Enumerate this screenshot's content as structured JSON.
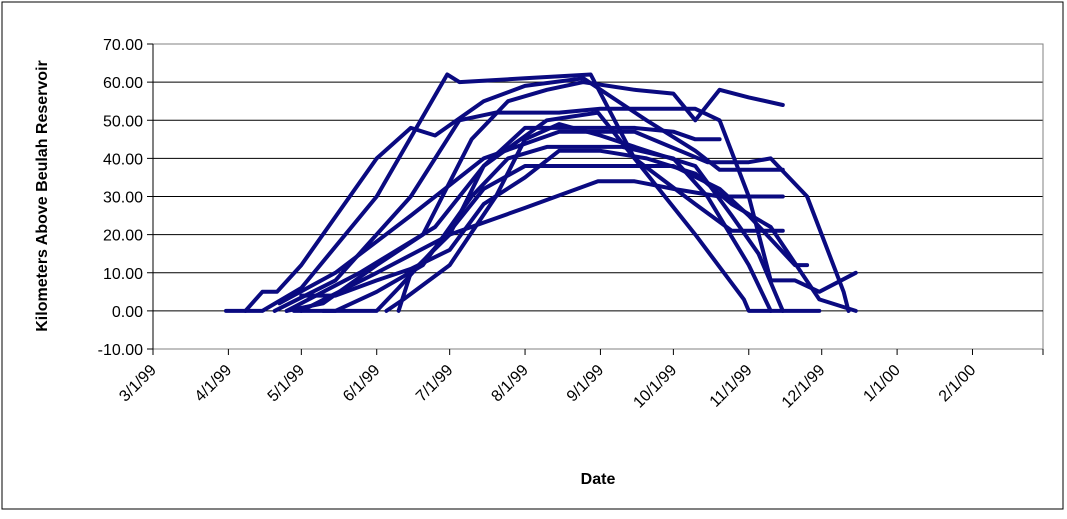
{
  "colors": {
    "series": "#0a0a80",
    "axis": "#000000",
    "gridline": "#000000",
    "border": "#000000",
    "background": "#ffffff"
  },
  "chart_data": {
    "type": "line",
    "title": "",
    "xlabel": "Date",
    "ylabel": "Kilometers Above Beulah Reservoir",
    "xlim": [
      "1999-03-01",
      "2000-03-01"
    ],
    "ylim": [
      -10,
      70
    ],
    "grid": "horizontal",
    "legend": "none",
    "x_tick_labels": [
      "3/1/99",
      "4/1/99",
      "5/1/99",
      "6/1/99",
      "7/1/99",
      "8/1/99",
      "9/1/99",
      "10/1/99",
      "11/1/99",
      "12/1/99",
      "1/1/00",
      "2/1/00"
    ],
    "y_tick_labels": [
      "-10.00",
      "0.00",
      "10.00",
      "20.00",
      "30.00",
      "40.00",
      "50.00",
      "60.00",
      "70.00"
    ],
    "series": [
      {
        "points": [
          [
            "1999-03-31",
            0
          ],
          [
            "1999-04-15",
            0
          ],
          [
            "1999-05-01",
            6
          ],
          [
            "1999-06-01",
            30
          ],
          [
            "1999-06-30",
            62
          ],
          [
            "1999-07-05",
            60
          ],
          [
            "1999-08-01",
            61
          ],
          [
            "1999-08-28",
            62
          ],
          [
            "1999-09-15",
            40
          ],
          [
            "1999-10-10",
            20
          ],
          [
            "1999-10-30",
            3
          ],
          [
            "1999-11-01",
            0
          ],
          [
            "1999-11-30",
            0
          ]
        ]
      },
      {
        "points": [
          [
            "1999-04-08",
            0
          ],
          [
            "1999-04-15",
            5
          ],
          [
            "1999-04-21",
            5
          ],
          [
            "1999-05-01",
            12
          ],
          [
            "1999-06-01",
            40
          ],
          [
            "1999-06-15",
            48
          ],
          [
            "1999-06-25",
            46
          ],
          [
            "1999-07-15",
            55
          ],
          [
            "1999-08-01",
            59
          ],
          [
            "1999-08-25",
            61
          ],
          [
            "1999-09-20",
            50
          ],
          [
            "1999-10-10",
            42
          ],
          [
            "1999-10-20",
            37
          ],
          [
            "1999-11-15",
            37
          ]
        ]
      },
      {
        "points": [
          [
            "1999-04-20",
            0
          ],
          [
            "1999-05-15",
            8
          ],
          [
            "1999-06-15",
            30
          ],
          [
            "1999-07-05",
            50
          ],
          [
            "1999-07-20",
            52
          ],
          [
            "1999-08-15",
            52
          ],
          [
            "1999-09-01",
            53
          ],
          [
            "1999-09-25",
            53
          ],
          [
            "1999-10-10",
            53
          ],
          [
            "1999-10-20",
            50
          ],
          [
            "1999-11-01",
            30
          ],
          [
            "1999-11-10",
            8
          ],
          [
            "1999-11-20",
            8
          ],
          [
            "1999-11-30",
            5
          ],
          [
            "1999-12-15",
            10
          ]
        ]
      },
      {
        "points": [
          [
            "1999-04-25",
            0
          ],
          [
            "1999-05-10",
            2
          ],
          [
            "1999-06-01",
            12
          ],
          [
            "1999-06-20",
            20
          ],
          [
            "1999-07-10",
            45
          ],
          [
            "1999-07-25",
            55
          ],
          [
            "1999-08-10",
            58
          ],
          [
            "1999-08-25",
            60
          ],
          [
            "1999-09-15",
            58
          ],
          [
            "1999-10-01",
            57
          ],
          [
            "1999-10-10",
            50
          ],
          [
            "1999-10-20",
            58
          ],
          [
            "1999-11-01",
            56
          ],
          [
            "1999-11-15",
            54
          ]
        ]
      },
      {
        "points": [
          [
            "1999-04-22",
            2
          ],
          [
            "1999-05-15",
            10
          ],
          [
            "1999-06-15",
            25
          ],
          [
            "1999-07-15",
            40
          ],
          [
            "1999-08-15",
            47
          ],
          [
            "1999-09-15",
            47
          ],
          [
            "1999-10-15",
            39
          ],
          [
            "1999-11-01",
            39
          ],
          [
            "1999-11-10",
            40
          ],
          [
            "1999-11-25",
            30
          ],
          [
            "1999-12-01",
            20
          ],
          [
            "1999-12-10",
            5
          ],
          [
            "1999-12-12",
            0
          ]
        ]
      },
      {
        "points": [
          [
            "1999-05-01",
            0
          ],
          [
            "1999-06-01",
            10
          ],
          [
            "1999-07-01",
            20
          ],
          [
            "1999-08-01",
            27
          ],
          [
            "1999-08-31",
            34
          ],
          [
            "1999-09-15",
            34
          ],
          [
            "1999-10-01",
            32
          ],
          [
            "1999-10-20",
            30
          ],
          [
            "1999-11-15",
            30
          ]
        ]
      },
      {
        "points": [
          [
            "1999-04-25",
            0
          ],
          [
            "1999-05-25",
            10
          ],
          [
            "1999-06-25",
            22
          ],
          [
            "1999-07-15",
            38
          ],
          [
            "1999-08-10",
            50
          ],
          [
            "1999-08-31",
            52
          ],
          [
            "1999-09-15",
            40
          ],
          [
            "1999-10-10",
            28
          ],
          [
            "1999-10-25",
            21
          ],
          [
            "1999-11-15",
            21
          ]
        ]
      },
      {
        "points": [
          [
            "1999-04-28",
            0
          ],
          [
            "1999-05-15",
            0
          ],
          [
            "1999-06-01",
            5
          ],
          [
            "1999-06-20",
            12
          ],
          [
            "1999-07-10",
            30
          ],
          [
            "1999-07-25",
            40
          ],
          [
            "1999-08-10",
            43
          ],
          [
            "1999-09-10",
            43
          ],
          [
            "1999-10-01",
            40
          ],
          [
            "1999-10-15",
            30
          ],
          [
            "1999-11-01",
            12
          ],
          [
            "1999-11-10",
            0
          ]
        ]
      },
      {
        "points": [
          [
            "1999-05-10",
            0
          ],
          [
            "1999-06-01",
            0
          ],
          [
            "1999-06-10",
            6
          ],
          [
            "1999-06-30",
            20
          ],
          [
            "1999-07-15",
            32
          ],
          [
            "1999-08-01",
            38
          ],
          [
            "1999-09-01",
            38
          ],
          [
            "1999-10-01",
            38
          ],
          [
            "1999-10-20",
            32
          ],
          [
            "1999-11-01",
            25
          ],
          [
            "1999-11-20",
            12
          ],
          [
            "1999-11-25",
            12
          ]
        ]
      },
      {
        "points": [
          [
            "1999-06-05",
            0
          ],
          [
            "1999-06-12",
            3
          ],
          [
            "1999-07-01",
            12
          ],
          [
            "1999-07-20",
            30
          ],
          [
            "1999-08-01",
            45
          ],
          [
            "1999-08-15",
            49
          ],
          [
            "1999-09-01",
            46
          ],
          [
            "1999-09-20",
            42
          ],
          [
            "1999-10-10",
            38
          ],
          [
            "1999-10-25",
            25
          ],
          [
            "1999-11-05",
            15
          ],
          [
            "1999-11-15",
            0
          ]
        ]
      },
      {
        "points": [
          [
            "1999-06-10",
            0
          ],
          [
            "1999-06-15",
            10
          ],
          [
            "1999-07-01",
            20
          ],
          [
            "1999-07-15",
            38
          ],
          [
            "1999-08-01",
            48
          ],
          [
            "1999-08-20",
            48
          ],
          [
            "1999-09-15",
            48
          ],
          [
            "1999-10-01",
            47
          ],
          [
            "1999-10-10",
            45
          ],
          [
            "1999-10-20",
            45
          ]
        ]
      },
      {
        "points": [
          [
            "1999-05-01",
            4
          ],
          [
            "1999-05-15",
            4
          ],
          [
            "1999-06-01",
            8
          ],
          [
            "1999-06-15",
            11
          ],
          [
            "1999-07-01",
            16
          ],
          [
            "1999-07-15",
            28
          ],
          [
            "1999-08-01",
            35
          ],
          [
            "1999-08-15",
            42
          ],
          [
            "1999-09-01",
            42
          ],
          [
            "1999-09-20",
            40
          ],
          [
            "1999-10-10",
            36
          ],
          [
            "1999-10-25",
            28
          ],
          [
            "1999-11-10",
            22
          ],
          [
            "1999-11-30",
            3
          ],
          [
            "1999-12-15",
            0
          ]
        ]
      }
    ]
  }
}
